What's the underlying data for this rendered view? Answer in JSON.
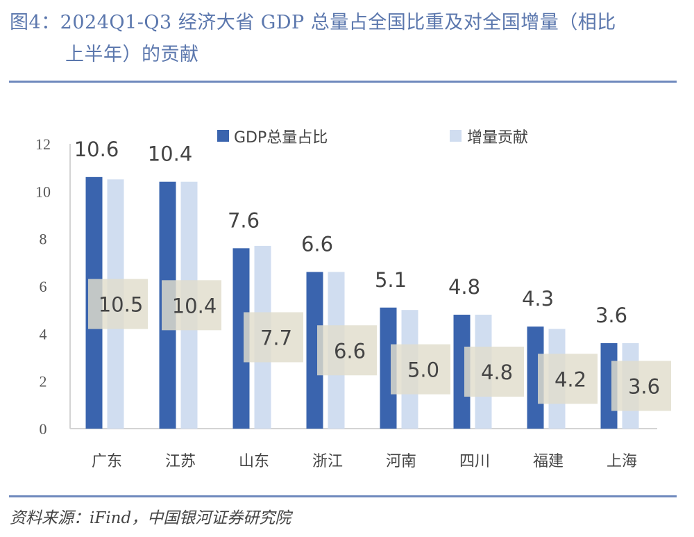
{
  "title": {
    "line1": "图4：2024Q1-Q3 经济大省 GDP 总量占全国比重及对全国增量（相比",
    "line2": "上半年）的贡献"
  },
  "source": "资料来源：iFind，中国银河证券研究院",
  "colors": {
    "gdp_share": "#3a64ae",
    "increment": "#d0ddf0",
    "label_box": "#e0ddcc",
    "rule": "#6f89bd",
    "title": "#5b77ad"
  },
  "chart_data": {
    "type": "bar",
    "title": "",
    "xlabel": "",
    "ylabel": "",
    "ylim": [
      0,
      12
    ],
    "yticks": [
      0,
      2,
      4,
      6,
      8,
      10,
      12
    ],
    "grid": false,
    "legend": {
      "position": "top",
      "entries": [
        "GDP总量占比",
        "增量贡献"
      ]
    },
    "categories": [
      "广东",
      "江苏",
      "山东",
      "浙江",
      "河南",
      "四川",
      "福建",
      "上海"
    ],
    "series": [
      {
        "name": "GDP总量占比",
        "values": [
          10.6,
          10.4,
          7.6,
          6.6,
          5.1,
          4.8,
          4.3,
          3.6
        ],
        "labels": [
          "10.6",
          "10.4",
          "7.6",
          "6.6",
          "5.1",
          "4.8",
          "4.3",
          "3.6"
        ]
      },
      {
        "name": "增量贡献",
        "values": [
          10.5,
          10.4,
          7.7,
          6.6,
          5.0,
          4.8,
          4.2,
          3.6
        ],
        "labels": [
          "10.5",
          "10.4",
          "7.7",
          "6.6",
          "5.0",
          "4.8",
          "4.2",
          "3.6"
        ]
      }
    ]
  }
}
